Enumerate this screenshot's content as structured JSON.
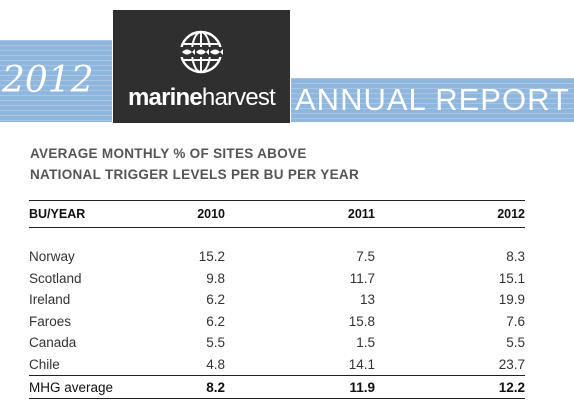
{
  "banner": {
    "year": "2012",
    "brand_bold": "marine",
    "brand_thin": "harvest",
    "report_title": "ANNUAL REPORT",
    "accent_color": "#8fb6dd",
    "logo_bg_color": "#2f2f2f",
    "logo_icon": "globe-fish-icon"
  },
  "table": {
    "title_line1": "AVERAGE MONTHLY % OF SITES ABOVE",
    "title_line2": "NATIONAL TRIGGER LEVELS PER BU PER YEAR",
    "headers": [
      "BU/YEAR",
      "2010",
      "2011",
      "2012"
    ],
    "rows": [
      [
        "Norway",
        "15.2",
        "7.5",
        "8.3"
      ],
      [
        "Scotland",
        "9.8",
        "11.7",
        "15.1"
      ],
      [
        "Ireland",
        "6.2",
        "13",
        "19.9"
      ],
      [
        "Faroes",
        "6.2",
        "15.8",
        "7.6"
      ],
      [
        "Canada",
        "5.5",
        "1.5",
        "5.5"
      ],
      [
        "Chile",
        "4.8",
        "14.1",
        "23.7"
      ]
    ],
    "average": [
      "MHG average",
      "8.2",
      "11.9",
      "12.2"
    ]
  }
}
